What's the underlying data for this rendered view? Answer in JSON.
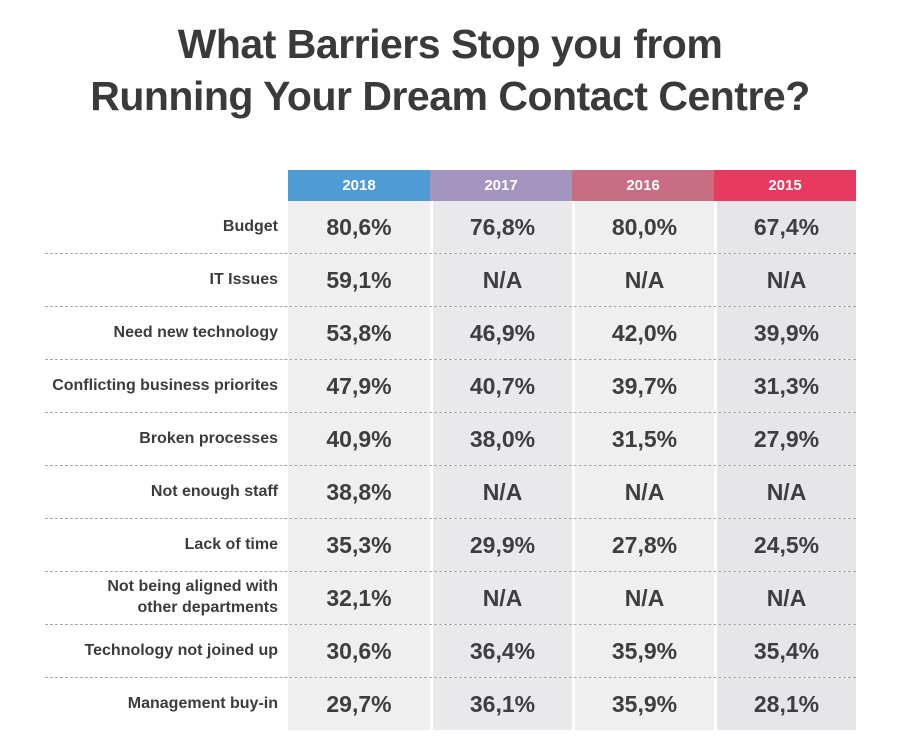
{
  "title": "What Barriers Stop you from\nRunning Your Dream Contact Centre?",
  "colors": {
    "title_text": "#3a3a3c",
    "header_text": "#ffffff",
    "body_text": "#3e3e41",
    "cell_bg_light": "#efeff0",
    "cell_bg_dark": "#e9e9eb",
    "cell_bg_last": "#e6e6e9",
    "divider": "#a8a8a8"
  },
  "chart_data": {
    "type": "table",
    "title": "What Barriers Stop you from Running Your Dream Contact Centre?",
    "columns": [
      "2018",
      "2017",
      "2016",
      "2015"
    ],
    "column_colors": [
      "#4f9bd5",
      "#a294bd",
      "#c96d84",
      "#e73a5e"
    ],
    "rows": [
      {
        "label": "Budget",
        "values": [
          "80,6%",
          "76,8%",
          "80,0%",
          "67,4%"
        ]
      },
      {
        "label": "IT Issues",
        "values": [
          "59,1%",
          "N/A",
          "N/A",
          "N/A"
        ]
      },
      {
        "label": "Need new technology",
        "values": [
          "53,8%",
          "46,9%",
          "42,0%",
          "39,9%"
        ]
      },
      {
        "label": "Conflicting business priorites",
        "values": [
          "47,9%",
          "40,7%",
          "39,7%",
          "31,3%"
        ]
      },
      {
        "label": "Broken processes",
        "values": [
          "40,9%",
          "38,0%",
          "31,5%",
          "27,9%"
        ]
      },
      {
        "label": "Not enough staff",
        "values": [
          "38,8%",
          "N/A",
          "N/A",
          "N/A"
        ]
      },
      {
        "label": "Lack of time",
        "values": [
          "35,3%",
          "29,9%",
          "27,8%",
          "24,5%"
        ]
      },
      {
        "label": "Not being aligned with\nother departments",
        "values": [
          "32,1%",
          "N/A",
          "N/A",
          "N/A"
        ]
      },
      {
        "label": "Technology not joined up",
        "values": [
          "30,6%",
          "36,4%",
          "35,9%",
          "35,4%"
        ]
      },
      {
        "label": "Management buy-in",
        "values": [
          "29,7%",
          "36,1%",
          "35,9%",
          "28,1%"
        ]
      }
    ]
  }
}
